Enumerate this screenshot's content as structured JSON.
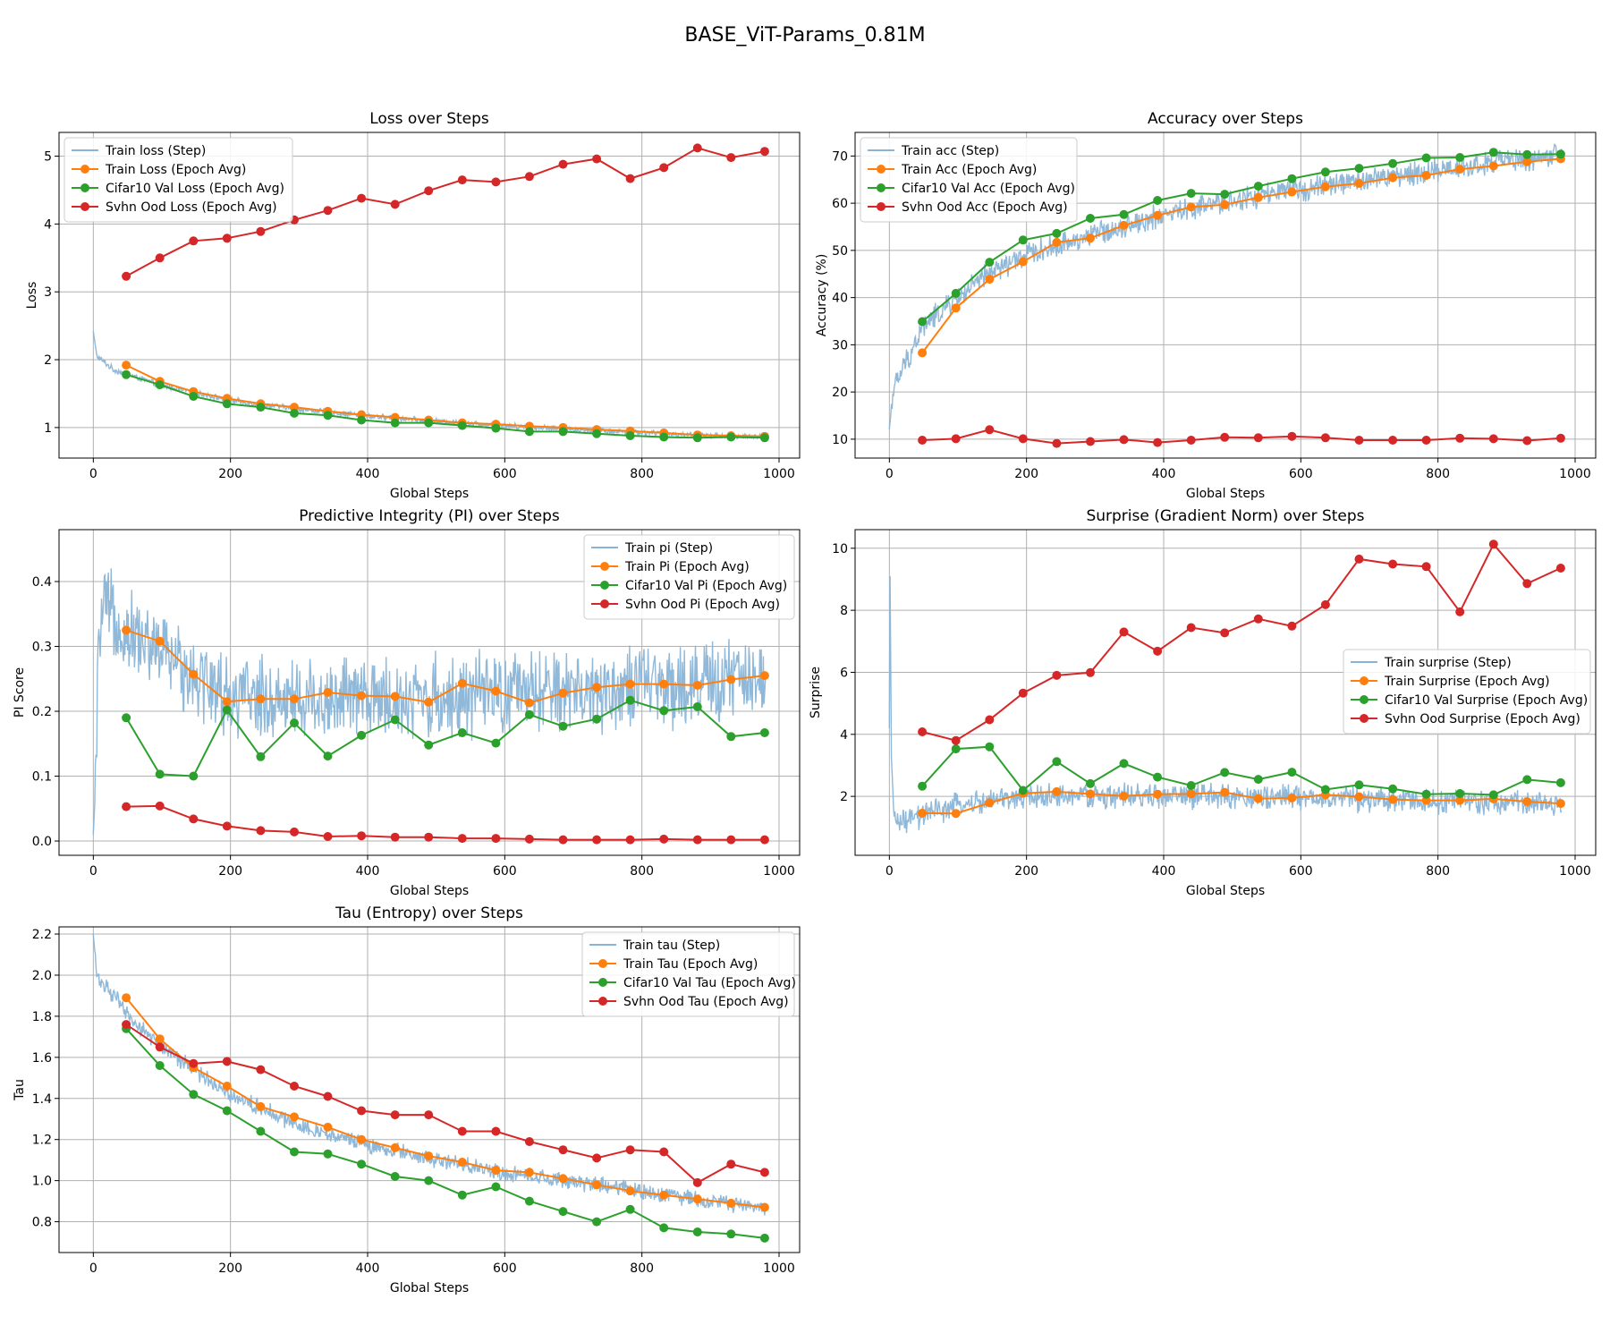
{
  "figure_title": "BASE_ViT-Params_0.81M",
  "colors": {
    "step": "#8ab4d6",
    "train": "#ff7f0e",
    "val": "#2ca02c",
    "ood": "#d62728",
    "grid": "#b0b0b0"
  },
  "chart_data": [
    {
      "type": "line",
      "title": "Loss over Steps",
      "xlabel": "Global Steps",
      "ylabel": "Loss",
      "xlim": [
        -50,
        1030
      ],
      "ylim": [
        0.55,
        5.35
      ],
      "xticks": [
        0,
        200,
        400,
        600,
        800,
        1000
      ],
      "yticks": [
        1,
        2,
        3,
        4,
        5
      ],
      "ytick_labels": [
        "1",
        "2",
        "3",
        "4",
        "5"
      ],
      "legend": "top-left",
      "epoch_x": [
        48,
        97,
        146,
        195,
        244,
        293,
        342,
        391,
        440,
        489,
        538,
        587,
        636,
        685,
        734,
        783,
        832,
        881,
        930,
        979
      ],
      "step_series": {
        "name": "Train loss (Step)",
        "anchors": [
          [
            0,
            2.42
          ],
          [
            5,
            2.05
          ],
          [
            30,
            1.85
          ],
          [
            100,
            1.62
          ],
          [
            200,
            1.4
          ],
          [
            300,
            1.27
          ],
          [
            400,
            1.17
          ],
          [
            500,
            1.09
          ],
          [
            600,
            1.03
          ],
          [
            700,
            0.97
          ],
          [
            800,
            0.93
          ],
          [
            900,
            0.88
          ],
          [
            980,
            0.86
          ]
        ],
        "noise": 0.035
      },
      "series": [
        {
          "name": "Train Loss (Epoch Avg)",
          "color": "train",
          "values": [
            1.92,
            1.68,
            1.53,
            1.43,
            1.35,
            1.3,
            1.24,
            1.19,
            1.15,
            1.11,
            1.07,
            1.05,
            1.02,
            1.0,
            0.97,
            0.95,
            0.92,
            0.89,
            0.88,
            0.87
          ]
        },
        {
          "name": "Cifar10 Val Loss (Epoch Avg)",
          "color": "val",
          "values": [
            1.78,
            1.63,
            1.46,
            1.35,
            1.3,
            1.21,
            1.18,
            1.11,
            1.07,
            1.07,
            1.03,
            0.99,
            0.94,
            0.94,
            0.91,
            0.88,
            0.86,
            0.85,
            0.86,
            0.85
          ]
        },
        {
          "name": "Svhn Ood Loss (Epoch Avg)",
          "color": "ood",
          "values": [
            3.23,
            3.5,
            3.75,
            3.79,
            3.89,
            4.06,
            4.2,
            4.38,
            4.29,
            4.49,
            4.65,
            4.62,
            4.7,
            4.88,
            4.96,
            4.67,
            4.83,
            5.12,
            4.98,
            5.07
          ]
        }
      ]
    },
    {
      "type": "line",
      "title": "Accuracy over Steps",
      "xlabel": "Global Steps",
      "ylabel": "Accuracy (%)",
      "xlim": [
        -50,
        1030
      ],
      "ylim": [
        6,
        75
      ],
      "xticks": [
        0,
        200,
        400,
        600,
        800,
        1000
      ],
      "yticks": [
        10,
        20,
        30,
        40,
        50,
        60,
        70
      ],
      "ytick_labels": [
        "10",
        "20",
        "30",
        "40",
        "50",
        "60",
        "70"
      ],
      "legend": "top-left",
      "epoch_x": [
        48,
        97,
        146,
        195,
        244,
        293,
        342,
        391,
        440,
        489,
        538,
        587,
        636,
        685,
        734,
        783,
        832,
        881,
        930,
        979
      ],
      "step_series": {
        "name": "Train acc (Step)",
        "anchors": [
          [
            0,
            12
          ],
          [
            5,
            20
          ],
          [
            20,
            25
          ],
          [
            50,
            34
          ],
          [
            100,
            40
          ],
          [
            150,
            45.5
          ],
          [
            200,
            49
          ],
          [
            300,
            53.5
          ],
          [
            400,
            57.5
          ],
          [
            500,
            60.5
          ],
          [
            600,
            63
          ],
          [
            700,
            65
          ],
          [
            800,
            67
          ],
          [
            900,
            69
          ],
          [
            980,
            70
          ]
        ],
        "noise": 2.2
      },
      "series": [
        {
          "name": "Train Acc (Epoch Avg)",
          "color": "train",
          "values": [
            28.3,
            37.8,
            43.9,
            47.6,
            51.7,
            52.6,
            55.3,
            57.4,
            59.2,
            59.7,
            61.2,
            62.4,
            63.5,
            64.2,
            65.4,
            65.9,
            67.2,
            67.9,
            68.8,
            69.4
          ]
        },
        {
          "name": "Cifar10 Val Acc (Epoch Avg)",
          "color": "val",
          "values": [
            34.9,
            40.9,
            47.5,
            52.2,
            53.6,
            56.8,
            57.6,
            60.6,
            62.1,
            61.9,
            63.6,
            65.2,
            66.6,
            67.4,
            68.4,
            69.6,
            69.7,
            70.8,
            70.3,
            70.4
          ]
        },
        {
          "name": "Svhn Ood Acc (Epoch Avg)",
          "color": "ood",
          "values": [
            9.8,
            10.1,
            12.0,
            10.1,
            9.1,
            9.5,
            9.9,
            9.3,
            9.8,
            10.4,
            10.3,
            10.6,
            10.3,
            9.8,
            9.8,
            9.8,
            10.2,
            10.1,
            9.7,
            10.2
          ]
        }
      ]
    },
    {
      "type": "line",
      "title": "Predictive Integrity (PI) over Steps",
      "xlabel": "Global Steps",
      "ylabel": "PI Score",
      "xlim": [
        -50,
        1030
      ],
      "ylim": [
        -0.022,
        0.48
      ],
      "xticks": [
        0,
        200,
        400,
        600,
        800,
        1000
      ],
      "yticks": [
        0.0,
        0.1,
        0.2,
        0.3,
        0.4
      ],
      "ytick_labels": [
        "0.0",
        "0.1",
        "0.2",
        "0.3",
        "0.4"
      ],
      "legend": "top-right",
      "epoch_x": [
        48,
        97,
        146,
        195,
        244,
        293,
        342,
        391,
        440,
        489,
        538,
        587,
        636,
        685,
        734,
        783,
        832,
        881,
        930,
        979
      ],
      "step_series": {
        "name": "Train pi (Step)",
        "anchors": [
          [
            0,
            0.01
          ],
          [
            3,
            0.08
          ],
          [
            8,
            0.3
          ],
          [
            15,
            0.36
          ],
          [
            40,
            0.33
          ],
          [
            100,
            0.29
          ],
          [
            160,
            0.25
          ],
          [
            200,
            0.22
          ],
          [
            300,
            0.22
          ],
          [
            500,
            0.22
          ],
          [
            700,
            0.23
          ],
          [
            980,
            0.25
          ]
        ],
        "noise": 0.055
      },
      "series": [
        {
          "name": "Train Pi (Epoch Avg)",
          "color": "train",
          "values": [
            0.325,
            0.308,
            0.257,
            0.215,
            0.219,
            0.219,
            0.229,
            0.224,
            0.223,
            0.214,
            0.243,
            0.231,
            0.213,
            0.228,
            0.237,
            0.242,
            0.242,
            0.24,
            0.249,
            0.255
          ]
        },
        {
          "name": "Cifar10 Val Pi (Epoch Avg)",
          "color": "val",
          "values": [
            0.19,
            0.103,
            0.1,
            0.202,
            0.13,
            0.182,
            0.131,
            0.163,
            0.187,
            0.148,
            0.167,
            0.151,
            0.195,
            0.177,
            0.188,
            0.217,
            0.201,
            0.207,
            0.161,
            0.167
          ]
        },
        {
          "name": "Svhn Ood Pi (Epoch Avg)",
          "color": "ood",
          "values": [
            0.053,
            0.054,
            0.034,
            0.023,
            0.016,
            0.014,
            0.007,
            0.008,
            0.006,
            0.006,
            0.004,
            0.004,
            0.003,
            0.002,
            0.002,
            0.002,
            0.003,
            0.002,
            0.002,
            0.002
          ]
        }
      ]
    },
    {
      "type": "line",
      "title": "Surprise (Gradient Norm) over Steps",
      "xlabel": "Global Steps",
      "ylabel": "Surprise",
      "xlim": [
        -50,
        1030
      ],
      "ylim": [
        0.1,
        10.6
      ],
      "xticks": [
        0,
        200,
        400,
        600,
        800,
        1000
      ],
      "yticks": [
        2,
        4,
        6,
        8,
        10
      ],
      "ytick_labels": [
        "2",
        "4",
        "6",
        "8",
        "10"
      ],
      "legend": "center-right",
      "epoch_x": [
        48,
        97,
        146,
        195,
        244,
        293,
        342,
        391,
        440,
        489,
        538,
        587,
        636,
        685,
        734,
        783,
        832,
        881,
        930,
        979
      ],
      "step_series": {
        "name": "Train surprise (Step)",
        "anchors": [
          [
            0,
            4.2
          ],
          [
            1,
            9.1
          ],
          [
            3,
            3.0
          ],
          [
            6,
            1.5
          ],
          [
            15,
            1.1
          ],
          [
            50,
            1.4
          ],
          [
            100,
            1.7
          ],
          [
            200,
            2.0
          ],
          [
            300,
            2.0
          ],
          [
            500,
            2.0
          ],
          [
            800,
            1.85
          ],
          [
            980,
            1.75
          ]
        ],
        "noise": 0.35
      },
      "series": [
        {
          "name": "Train Surprise (Epoch Avg)",
          "color": "train",
          "values": [
            1.46,
            1.45,
            1.79,
            2.1,
            2.15,
            2.08,
            2.01,
            2.07,
            2.08,
            2.13,
            1.93,
            1.95,
            2.05,
            1.99,
            1.9,
            1.87,
            1.87,
            1.92,
            1.83,
            1.77
          ]
        },
        {
          "name": "Cifar10 Val Surprise (Epoch Avg)",
          "color": "val",
          "values": [
            2.33,
            3.53,
            3.6,
            2.19,
            3.12,
            2.41,
            3.06,
            2.62,
            2.35,
            2.77,
            2.55,
            2.78,
            2.22,
            2.37,
            2.24,
            2.07,
            2.09,
            2.05,
            2.54,
            2.44
          ]
        },
        {
          "name": "Svhn Ood Surprise (Epoch Avg)",
          "color": "ood",
          "values": [
            4.08,
            3.8,
            4.47,
            5.33,
            5.9,
            5.99,
            7.3,
            6.68,
            7.44,
            7.27,
            7.72,
            7.49,
            8.18,
            9.65,
            9.49,
            9.41,
            7.95,
            10.13,
            8.86,
            9.36
          ]
        }
      ]
    },
    {
      "type": "line",
      "title": "Tau (Entropy) over Steps",
      "xlabel": "Global Steps",
      "ylabel": "Tau",
      "xlim": [
        -50,
        1030
      ],
      "ylim": [
        0.65,
        2.235
      ],
      "xticks": [
        0,
        200,
        400,
        600,
        800,
        1000
      ],
      "yticks": [
        0.8,
        1.0,
        1.2,
        1.4,
        1.6,
        1.8,
        2.0,
        2.2
      ],
      "ytick_labels": [
        "0.8",
        "1.0",
        "1.2",
        "1.4",
        "1.6",
        "1.8",
        "2.0",
        "2.2"
      ],
      "legend": "top-right",
      "epoch_x": [
        48,
        97,
        146,
        195,
        244,
        293,
        342,
        391,
        440,
        489,
        538,
        587,
        636,
        685,
        734,
        783,
        832,
        881,
        930,
        979
      ],
      "step_series": {
        "name": "Train tau (Step)",
        "anchors": [
          [
            0,
            2.2
          ],
          [
            5,
            2.0
          ],
          [
            30,
            1.9
          ],
          [
            50,
            1.8
          ],
          [
            100,
            1.65
          ],
          [
            150,
            1.53
          ],
          [
            200,
            1.42
          ],
          [
            300,
            1.27
          ],
          [
            400,
            1.17
          ],
          [
            500,
            1.1
          ],
          [
            600,
            1.04
          ],
          [
            700,
            0.99
          ],
          [
            800,
            0.95
          ],
          [
            900,
            0.9
          ],
          [
            980,
            0.87
          ]
        ],
        "noise": 0.035
      },
      "series": [
        {
          "name": "Train Tau (Epoch Avg)",
          "color": "train",
          "values": [
            1.89,
            1.69,
            1.55,
            1.46,
            1.36,
            1.31,
            1.26,
            1.2,
            1.16,
            1.12,
            1.09,
            1.05,
            1.04,
            1.01,
            0.98,
            0.95,
            0.93,
            0.91,
            0.89,
            0.87
          ]
        },
        {
          "name": "Cifar10 Val Tau (Epoch Avg)",
          "color": "val",
          "values": [
            1.74,
            1.56,
            1.42,
            1.34,
            1.24,
            1.14,
            1.13,
            1.08,
            1.02,
            1.0,
            0.93,
            0.97,
            0.9,
            0.85,
            0.8,
            0.86,
            0.77,
            0.75,
            0.74,
            0.72
          ]
        },
        {
          "name": "Svhn Ood Tau (Epoch Avg)",
          "color": "ood",
          "values": [
            1.76,
            1.65,
            1.57,
            1.58,
            1.54,
            1.46,
            1.41,
            1.34,
            1.32,
            1.32,
            1.24,
            1.24,
            1.19,
            1.15,
            1.11,
            1.15,
            1.14,
            0.99,
            1.08,
            1.04
          ]
        }
      ]
    }
  ]
}
